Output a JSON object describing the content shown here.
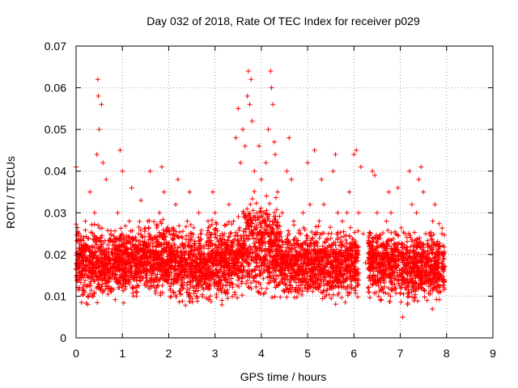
{
  "chart_data": {
    "type": "scatter",
    "title": "Day 032 of 2018, Rate Of TEC Index for receiver p029",
    "xlabel": "GPS time / hours",
    "ylabel": "ROTI / TECUs",
    "xlim": [
      0,
      9
    ],
    "ylim": [
      0,
      0.07
    ],
    "x_ticks": [
      0,
      1,
      2,
      3,
      4,
      5,
      6,
      7,
      8,
      9
    ],
    "x_tick_labels": [
      "0",
      "1",
      "2",
      "3",
      "4",
      "5",
      "6",
      "7",
      "8",
      "9"
    ],
    "y_ticks": [
      0,
      0.01,
      0.02,
      0.03,
      0.04,
      0.05,
      0.06,
      0.07
    ],
    "y_tick_labels": [
      "0",
      "0.01",
      "0.02",
      "0.03",
      "0.04",
      "0.05",
      "0.06",
      "0.07"
    ],
    "grid": true,
    "marker": "plus",
    "marker_color": "#ff0000",
    "series": [
      {
        "name": "ROTI",
        "x": [
          0.0,
          0.02,
          0.05,
          0.08,
          0.1,
          0.15,
          0.2,
          0.25,
          0.3,
          0.35,
          0.4,
          0.45,
          0.47,
          0.48,
          0.5,
          0.55,
          0.58,
          0.6,
          0.65,
          0.7,
          0.75,
          0.8,
          0.85,
          0.9,
          0.95,
          1.0,
          1.05,
          1.1,
          1.15,
          1.2,
          1.25,
          1.3,
          1.35,
          1.4,
          1.45,
          1.5,
          1.55,
          1.6,
          1.65,
          1.7,
          1.75,
          1.8,
          1.85,
          1.9,
          1.95,
          2.0,
          2.05,
          2.1,
          2.15,
          2.2,
          2.25,
          2.3,
          2.35,
          2.4,
          2.45,
          2.5,
          2.55,
          2.6,
          2.65,
          2.7,
          2.75,
          2.8,
          2.85,
          2.9,
          2.95,
          3.0,
          3.05,
          3.1,
          3.15,
          3.2,
          3.25,
          3.3,
          3.35,
          3.4,
          3.45,
          3.5,
          3.55,
          3.6,
          3.65,
          3.7,
          3.72,
          3.75,
          3.78,
          3.8,
          3.85,
          3.9,
          3.95,
          4.0,
          4.05,
          4.1,
          4.15,
          4.2,
          4.22,
          4.25,
          4.28,
          4.3,
          4.35,
          4.4,
          4.45,
          4.5,
          4.55,
          4.6,
          4.65,
          4.7,
          4.75,
          4.8,
          4.85,
          4.9,
          4.95,
          5.0,
          5.05,
          5.1,
          5.15,
          5.2,
          5.25,
          5.3,
          5.35,
          5.4,
          5.45,
          5.5,
          5.55,
          5.6,
          5.65,
          5.7,
          5.75,
          5.8,
          5.85,
          5.9,
          5.95,
          6.0,
          6.05,
          6.1,
          6.15,
          6.2,
          6.25,
          6.3,
          6.35,
          6.4,
          6.45,
          6.5,
          6.55,
          6.6,
          6.65,
          6.7,
          6.75,
          6.8,
          6.85,
          6.9,
          6.95,
          7.0,
          7.05,
          7.1,
          7.15,
          7.2,
          7.25,
          7.3,
          7.35,
          7.4,
          7.45,
          7.5,
          7.55,
          7.6,
          7.65,
          7.7,
          7.75,
          7.8,
          7.85,
          7.9,
          7.95
        ],
        "y": [
          0.041,
          0.018,
          0.025,
          0.012,
          0.02,
          0.015,
          0.028,
          0.01,
          0.035,
          0.022,
          0.03,
          0.044,
          0.062,
          0.058,
          0.05,
          0.056,
          0.042,
          0.018,
          0.038,
          0.012,
          0.025,
          0.02,
          0.016,
          0.03,
          0.045,
          0.04,
          0.022,
          0.014,
          0.028,
          0.036,
          0.018,
          0.01,
          0.025,
          0.033,
          0.02,
          0.015,
          0.028,
          0.04,
          0.022,
          0.012,
          0.018,
          0.03,
          0.041,
          0.035,
          0.015,
          0.02,
          0.01,
          0.025,
          0.032,
          0.038,
          0.018,
          0.012,
          0.022,
          0.028,
          0.035,
          0.015,
          0.02,
          0.01,
          0.03,
          0.025,
          0.018,
          0.012,
          0.028,
          0.022,
          0.035,
          0.03,
          0.015,
          0.02,
          0.012,
          0.025,
          0.018,
          0.032,
          0.022,
          0.028,
          0.048,
          0.055,
          0.042,
          0.05,
          0.046,
          0.058,
          0.064,
          0.056,
          0.062,
          0.052,
          0.04,
          0.03,
          0.046,
          0.038,
          0.03,
          0.042,
          0.05,
          0.064,
          0.06,
          0.056,
          0.047,
          0.044,
          0.035,
          0.025,
          0.03,
          0.02,
          0.04,
          0.048,
          0.038,
          0.028,
          0.02,
          0.015,
          0.025,
          0.03,
          0.018,
          0.042,
          0.032,
          0.024,
          0.045,
          0.02,
          0.028,
          0.038,
          0.032,
          0.018,
          0.025,
          0.012,
          0.04,
          0.044,
          0.03,
          0.02,
          0.028,
          0.022,
          0.03,
          0.035,
          0.018,
          0.044,
          0.045,
          0.03,
          0.041,
          0.025,
          0.018,
          0.012,
          0.025,
          0.04,
          0.039,
          0.03,
          0.018,
          0.012,
          0.022,
          0.028,
          0.035,
          0.03,
          0.02,
          0.025,
          0.036,
          0.015,
          0.005,
          0.025,
          0.018,
          0.04,
          0.032,
          0.022,
          0.03,
          0.038,
          0.041,
          0.035,
          0.025,
          0.02,
          0.015,
          0.028,
          0.032,
          0.018,
          0.022,
          0.025,
          0.012
        ]
      }
    ],
    "band_segments": [
      {
        "x0": 0.0,
        "x1": 1.35,
        "ylo": 0.007,
        "yhi": 0.027
      },
      {
        "x0": 1.35,
        "x1": 2.1,
        "ylo": 0.008,
        "yhi": 0.028
      },
      {
        "x0": 2.1,
        "x1": 2.9,
        "ylo": 0.006,
        "yhi": 0.027
      },
      {
        "x0": 2.9,
        "x1": 3.6,
        "ylo": 0.007,
        "yhi": 0.028
      },
      {
        "x0": 3.6,
        "x1": 4.4,
        "ylo": 0.007,
        "yhi": 0.034
      },
      {
        "x0": 4.4,
        "x1": 5.2,
        "ylo": 0.007,
        "yhi": 0.027
      },
      {
        "x0": 5.2,
        "x1": 6.1,
        "ylo": 0.007,
        "yhi": 0.026
      },
      {
        "x0": 6.3,
        "x1": 7.1,
        "ylo": 0.007,
        "yhi": 0.027
      },
      {
        "x0": 7.1,
        "x1": 7.97,
        "ylo": 0.006,
        "yhi": 0.026
      }
    ]
  }
}
